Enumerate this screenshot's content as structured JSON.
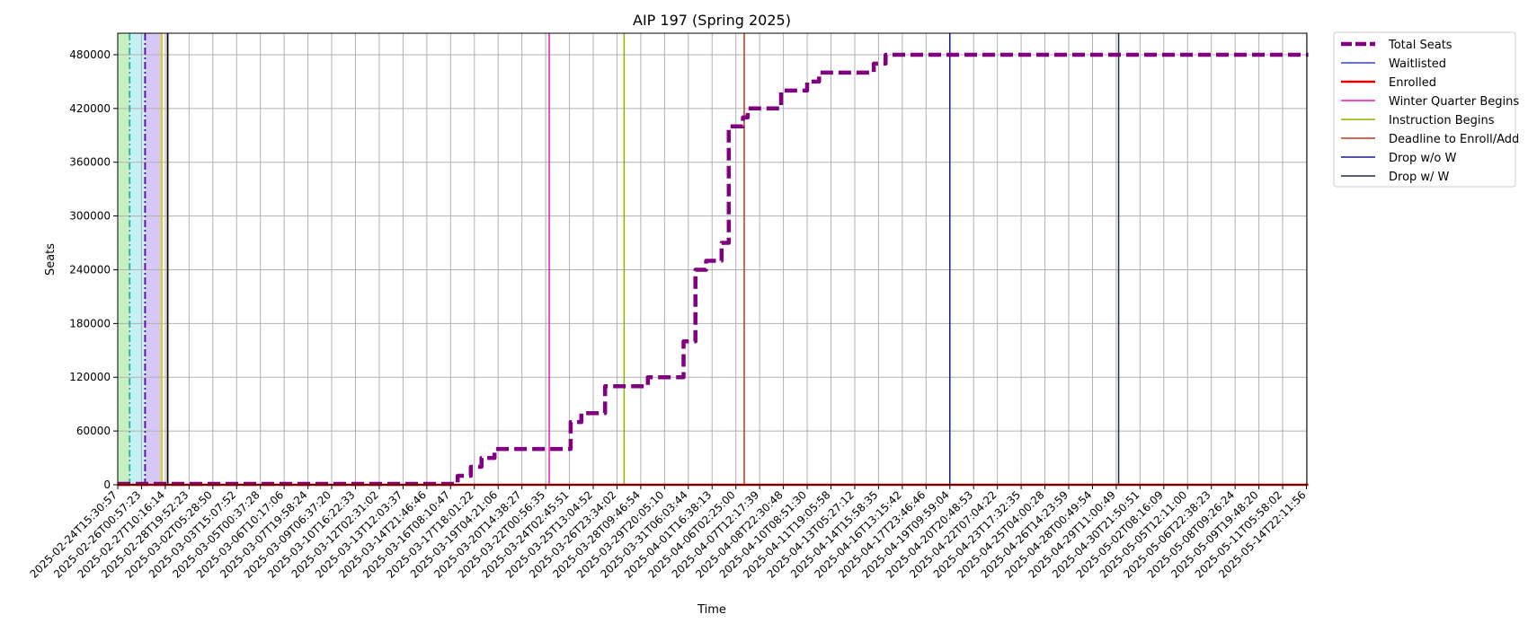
{
  "chart_data": {
    "type": "line",
    "title": "AIP 197 (Spring 2025)",
    "xlabel": "Time",
    "ylabel": "Seats",
    "ylim": [
      0,
      504000
    ],
    "yticks": [
      0,
      60000,
      120000,
      180000,
      240000,
      300000,
      360000,
      420000,
      480000
    ],
    "grid": true,
    "legend_position": "outside-top-right",
    "x_tick_labels": [
      "2025-02-24T15:30:57",
      "2025-02-26T00:57:23",
      "2025-02-27T10:16:14",
      "2025-02-28T19:52:23",
      "2025-03-02T05:28:50",
      "2025-03-03T15:07:52",
      "2025-03-05T00:37:28",
      "2025-03-06T10:17:06",
      "2025-03-07T19:58:24",
      "2025-03-09T06:37:20",
      "2025-03-10T16:22:33",
      "2025-03-12T02:31:02",
      "2025-03-13T12:03:37",
      "2025-03-14T21:46:46",
      "2025-03-16T08:10:47",
      "2025-03-17T18:01:22",
      "2025-03-19T04:21:06",
      "2025-03-20T14:38:27",
      "2025-03-22T00:56:35",
      "2025-03-24T02:45:51",
      "2025-03-25T13:04:52",
      "2025-03-26T23:34:02",
      "2025-03-28T09:46:54",
      "2025-03-29T20:05:10",
      "2025-03-31T06:03:44",
      "2025-04-01T16:38:13",
      "2025-04-06T02:25:00",
      "2025-04-07T12:17:39",
      "2025-04-08T22:30:48",
      "2025-04-10T08:51:30",
      "2025-04-11T19:05:58",
      "2025-04-13T05:27:12",
      "2025-04-14T15:58:35",
      "2025-04-16T13:15:42",
      "2025-04-17T23:46:46",
      "2025-04-19T09:59:04",
      "2025-04-20T20:48:53",
      "2025-04-22T07:04:22",
      "2025-04-23T17:32:35",
      "2025-04-25T04:00:28",
      "2025-04-26T14:23:59",
      "2025-04-28T00:49:54",
      "2025-04-29T11:00:49",
      "2025-04-30T21:50:51",
      "2025-05-02T08:16:09",
      "2025-05-05T12:11:00",
      "2025-05-06T22:38:23",
      "2025-05-08T09:26:24",
      "2025-05-09T19:48:20",
      "2025-05-11T05:58:02",
      "2025-05-14T22:11:56"
    ],
    "x_range": [
      0,
      50.08
    ],
    "series": [
      {
        "name": "Total Seats",
        "color": "#800080",
        "style": "dashed-thick",
        "x": [
          0,
          14.3,
          14.3,
          14.85,
          14.85,
          15.3,
          15.3,
          15.85,
          15.85,
          19.05,
          19.05,
          19.5,
          19.5,
          20.5,
          20.5,
          21.1,
          21.1,
          22.3,
          22.3,
          22.5,
          22.5,
          23.8,
          23.8,
          24.3,
          24.3,
          24.75,
          24.75,
          25.4,
          25.4,
          25.7,
          25.7,
          26.3,
          26.3,
          26.5,
          26.5,
          27.9,
          27.9,
          28.2,
          28.2,
          29.0,
          29.0,
          29.5,
          29.5,
          31.8,
          31.8,
          32.3,
          32.3,
          33.1,
          33.1,
          33.4,
          33.4,
          50.08
        ],
        "y": [
          1000,
          1000,
          10000,
          10000,
          20000,
          20000,
          30000,
          30000,
          40000,
          40000,
          70000,
          70000,
          80000,
          80000,
          110000,
          110000,
          110000,
          110000,
          120000,
          120000,
          120000,
          120000,
          160000,
          160000,
          240000,
          240000,
          250000,
          250000,
          270000,
          270000,
          400000,
          400000,
          410000,
          410000,
          420000,
          420000,
          440000,
          440000,
          440000,
          440000,
          450000,
          450000,
          460000,
          460000,
          470000,
          470000,
          480000,
          480000,
          480000,
          480000,
          480000,
          480000
        ]
      },
      {
        "name": "Waitlisted",
        "color": "#3344ee",
        "style": "solid",
        "x": [],
        "y": []
      },
      {
        "name": "Enrolled",
        "color": "#e00000",
        "style": "solid-thick",
        "x": [
          0,
          50.08
        ],
        "y": [
          0,
          0
        ]
      }
    ],
    "markers": [
      {
        "name": "Winter Quarter Begins",
        "color": "#e817c0",
        "x": 18.15
      },
      {
        "name": "Instruction Begins",
        "color": "#8db600",
        "x": 21.3
      },
      {
        "name": "Deadline to Enroll/Add",
        "color": "#c8341a",
        "x": 26.35
      },
      {
        "name": "Drop w/o W",
        "color": "#1a1a8a",
        "x": 35.0
      },
      {
        "name": "Drop w/ W",
        "color": "#1e2a4a",
        "x": 42.1
      }
    ],
    "shaded_regions": [
      {
        "color": "#c8f0c0",
        "x0": -0.6,
        "x1": 0.5
      },
      {
        "color": "#c6f0f2",
        "x0": 0.5,
        "x1": 1.15
      },
      {
        "color": "#d6c8f4",
        "x0": 1.15,
        "x1": 1.9
      }
    ],
    "extra_vlines": [
      {
        "color": "#20b0b0",
        "style": "dashdot",
        "x": 0.5
      },
      {
        "color": "#5500aa",
        "style": "dashdot",
        "x": 1.15
      },
      {
        "color": "#e0d000",
        "style": "solid",
        "x": 1.85
      },
      {
        "color": "#000000",
        "style": "solid",
        "x": 2.1
      }
    ]
  }
}
